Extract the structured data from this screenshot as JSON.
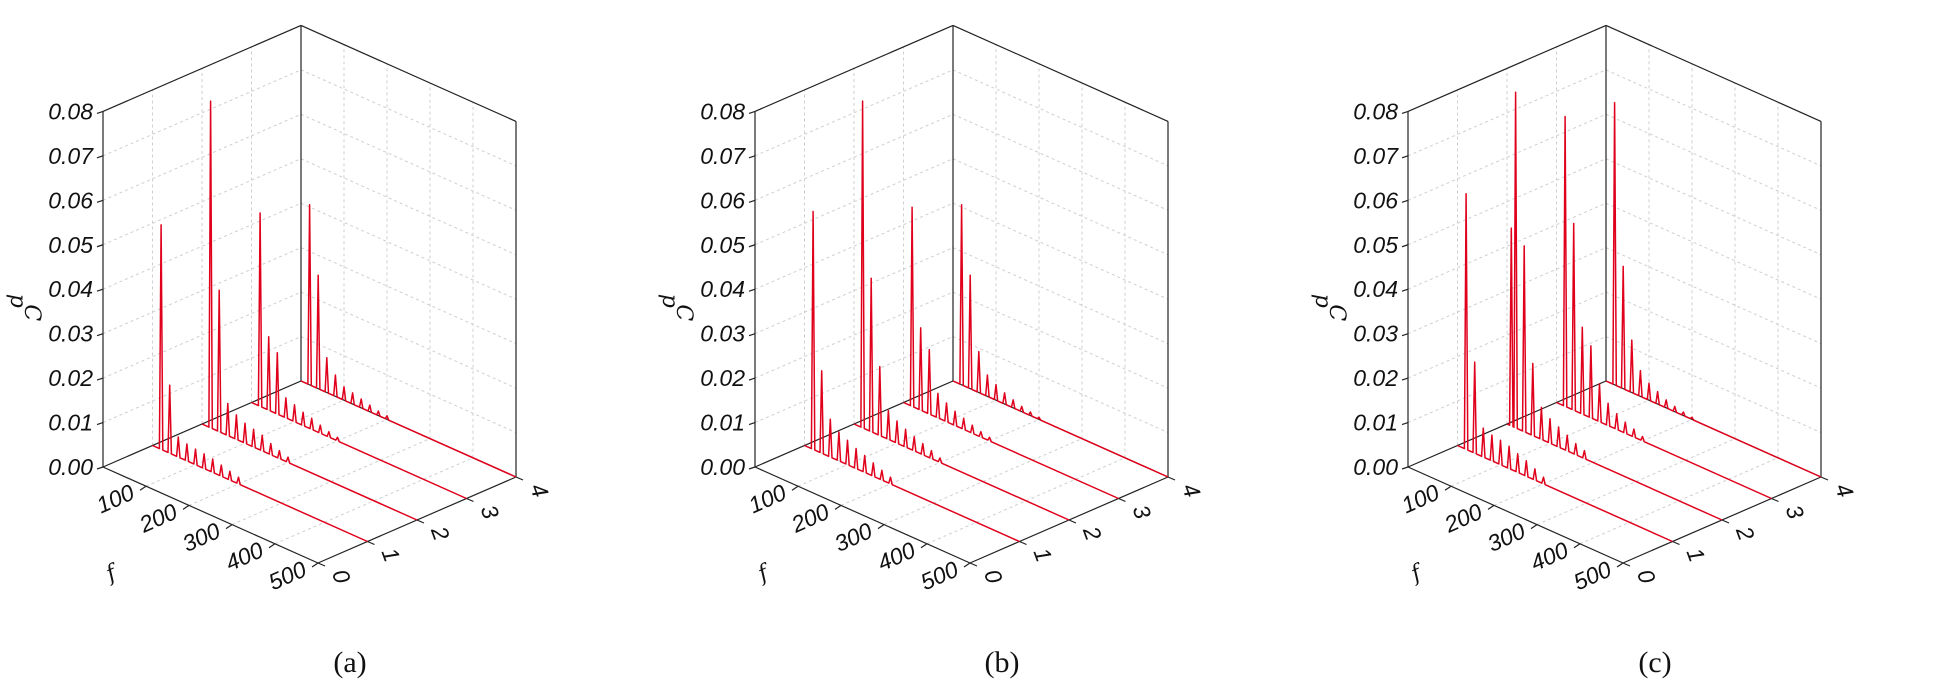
{
  "chart_data": [
    {
      "type": "line",
      "panel_label": "(a)",
      "zlabel": "C",
      "zlabel_sub": "p",
      "xlabel": "f",
      "ylabel": "",
      "xlim": [
        0,
        500
      ],
      "ylim": [
        0,
        4
      ],
      "zlim": [
        0,
        0.08
      ],
      "z_ticks": [
        "0.00",
        "0.01",
        "0.02",
        "0.03",
        "0.04",
        "0.05",
        "0.06",
        "0.07",
        "0.08"
      ],
      "x_ticks": [
        "100",
        "200",
        "300",
        "400",
        "500"
      ],
      "y_ticks": [
        "0",
        "1",
        "2",
        "3",
        "4"
      ],
      "grid": true,
      "series_color": "#e0001b",
      "series": [
        {
          "y": 1,
          "peaks": [
            {
              "f": 20,
              "c": 0.0505
            },
            {
              "f": 40,
              "c": 0.0153
            },
            {
              "f": 60,
              "c": 0.0045
            },
            {
              "f": 80,
              "c": 0.0038
            },
            {
              "f": 100,
              "c": 0.0035
            },
            {
              "f": 120,
              "c": 0.0033
            },
            {
              "f": 140,
              "c": 0.003
            },
            {
              "f": 160,
              "c": 0.0025
            },
            {
              "f": 180,
              "c": 0.002
            },
            {
              "f": 200,
              "c": 0.0015
            }
          ]
        },
        {
          "y": 2,
          "peaks": [
            {
              "f": 20,
              "c": 0.0735
            },
            {
              "f": 40,
              "c": 0.0318
            },
            {
              "f": 60,
              "c": 0.0072
            },
            {
              "f": 80,
              "c": 0.0055
            },
            {
              "f": 100,
              "c": 0.0045
            },
            {
              "f": 120,
              "c": 0.004
            },
            {
              "f": 140,
              "c": 0.0035
            },
            {
              "f": 160,
              "c": 0.0025
            },
            {
              "f": 180,
              "c": 0.0018
            },
            {
              "f": 200,
              "c": 0.0012
            }
          ]
        },
        {
          "y": 3,
          "peaks": [
            {
              "f": 20,
              "c": 0.0435
            },
            {
              "f": 40,
              "c": 0.0165
            },
            {
              "f": 60,
              "c": 0.0138
            },
            {
              "f": 80,
              "c": 0.0045
            },
            {
              "f": 100,
              "c": 0.0038
            },
            {
              "f": 120,
              "c": 0.003
            },
            {
              "f": 140,
              "c": 0.0025
            },
            {
              "f": 160,
              "c": 0.0018
            },
            {
              "f": 180,
              "c": 0.0012
            },
            {
              "f": 200,
              "c": 0.0008
            }
          ]
        },
        {
          "y": 4,
          "peaks": [
            {
              "f": 20,
              "c": 0.0405
            },
            {
              "f": 40,
              "c": 0.0255
            },
            {
              "f": 60,
              "c": 0.0078
            },
            {
              "f": 80,
              "c": 0.0048
            },
            {
              "f": 100,
              "c": 0.003
            },
            {
              "f": 120,
              "c": 0.0025
            },
            {
              "f": 140,
              "c": 0.002
            },
            {
              "f": 160,
              "c": 0.0015
            },
            {
              "f": 180,
              "c": 0.001
            },
            {
              "f": 200,
              "c": 0.0008
            }
          ]
        }
      ]
    },
    {
      "type": "line",
      "panel_label": "(b)",
      "zlabel": "C",
      "zlabel_sub": "p",
      "xlabel": "f",
      "ylabel": "",
      "xlim": [
        0,
        500
      ],
      "ylim": [
        0,
        4
      ],
      "zlim": [
        0,
        0.08
      ],
      "z_ticks": [
        "0.00",
        "0.01",
        "0.02",
        "0.03",
        "0.04",
        "0.05",
        "0.06",
        "0.07",
        "0.08"
      ],
      "x_ticks": [
        "100",
        "200",
        "300",
        "400",
        "500"
      ],
      "y_ticks": [
        "0",
        "1",
        "2",
        "3",
        "4"
      ],
      "grid": true,
      "series_color": "#e0001b",
      "series": [
        {
          "y": 1,
          "peaks": [
            {
              "f": 20,
              "c": 0.0535
            },
            {
              "f": 40,
              "c": 0.0185
            },
            {
              "f": 60,
              "c": 0.0085
            },
            {
              "f": 80,
              "c": 0.0065
            },
            {
              "f": 100,
              "c": 0.0055
            },
            {
              "f": 120,
              "c": 0.0045
            },
            {
              "f": 140,
              "c": 0.0038
            },
            {
              "f": 160,
              "c": 0.003
            },
            {
              "f": 180,
              "c": 0.0022
            },
            {
              "f": 200,
              "c": 0.0015
            }
          ]
        },
        {
          "y": 2,
          "peaks": [
            {
              "f": 20,
              "c": 0.0735
            },
            {
              "f": 40,
              "c": 0.0345
            },
            {
              "f": 60,
              "c": 0.0155
            },
            {
              "f": 80,
              "c": 0.0065
            },
            {
              "f": 100,
              "c": 0.005
            },
            {
              "f": 120,
              "c": 0.004
            },
            {
              "f": 140,
              "c": 0.0032
            },
            {
              "f": 160,
              "c": 0.0025
            },
            {
              "f": 180,
              "c": 0.0018
            },
            {
              "f": 200,
              "c": 0.001
            }
          ]
        },
        {
          "y": 3,
          "peaks": [
            {
              "f": 20,
              "c": 0.0448
            },
            {
              "f": 40,
              "c": 0.0185
            },
            {
              "f": 60,
              "c": 0.0145
            },
            {
              "f": 80,
              "c": 0.0055
            },
            {
              "f": 100,
              "c": 0.0042
            },
            {
              "f": 120,
              "c": 0.0032
            },
            {
              "f": 140,
              "c": 0.0025
            },
            {
              "f": 160,
              "c": 0.0018
            },
            {
              "f": 180,
              "c": 0.0012
            },
            {
              "f": 200,
              "c": 0.0008
            }
          ]
        },
        {
          "y": 4,
          "peaks": [
            {
              "f": 20,
              "c": 0.0405
            },
            {
              "f": 40,
              "c": 0.0255
            },
            {
              "f": 60,
              "c": 0.0092
            },
            {
              "f": 80,
              "c": 0.0048
            },
            {
              "f": 100,
              "c": 0.0035
            },
            {
              "f": 120,
              "c": 0.0025
            },
            {
              "f": 140,
              "c": 0.0018
            },
            {
              "f": 160,
              "c": 0.0012
            },
            {
              "f": 180,
              "c": 0.0008
            },
            {
              "f": 200,
              "c": 0.0005
            }
          ]
        }
      ]
    },
    {
      "type": "line",
      "panel_label": "(c)",
      "zlabel": "C",
      "zlabel_sub": "p",
      "xlabel": "f",
      "ylabel": "",
      "xlim": [
        0,
        500
      ],
      "ylim": [
        0,
        4
      ],
      "zlim": [
        0,
        0.08
      ],
      "z_ticks": [
        "0.00",
        "0.01",
        "0.02",
        "0.03",
        "0.04",
        "0.05",
        "0.06",
        "0.07",
        "0.08"
      ],
      "x_ticks": [
        "100",
        "200",
        "300",
        "400",
        "500"
      ],
      "y_ticks": [
        "0",
        "1",
        "2",
        "3",
        "4"
      ],
      "grid": true,
      "series_color": "#e0001b",
      "series": [
        {
          "y": 1,
          "peaks": [
            {
              "f": 20,
              "c": 0.0575
            },
            {
              "f": 40,
              "c": 0.0205
            },
            {
              "f": 60,
              "c": 0.0065
            },
            {
              "f": 80,
              "c": 0.0058
            },
            {
              "f": 100,
              "c": 0.0055
            },
            {
              "f": 120,
              "c": 0.005
            },
            {
              "f": 140,
              "c": 0.0042
            },
            {
              "f": 160,
              "c": 0.0035
            },
            {
              "f": 180,
              "c": 0.0025
            },
            {
              "f": 200,
              "c": 0.0015
            }
          ]
        },
        {
          "y": 2,
          "peaks": [
            {
              "f": 10,
              "c": 0.0445
            },
            {
              "f": 20,
              "c": 0.0755
            },
            {
              "f": 40,
              "c": 0.0418
            },
            {
              "f": 60,
              "c": 0.0162
            },
            {
              "f": 80,
              "c": 0.0072
            },
            {
              "f": 100,
              "c": 0.0055
            },
            {
              "f": 120,
              "c": 0.0045
            },
            {
              "f": 140,
              "c": 0.0035
            },
            {
              "f": 160,
              "c": 0.0025
            },
            {
              "f": 180,
              "c": 0.0018
            }
          ]
        },
        {
          "y": 3,
          "peaks": [
            {
              "f": 20,
              "c": 0.0652
            },
            {
              "f": 40,
              "c": 0.042
            },
            {
              "f": 60,
              "c": 0.0195
            },
            {
              "f": 80,
              "c": 0.0162
            },
            {
              "f": 100,
              "c": 0.0085
            },
            {
              "f": 120,
              "c": 0.005
            },
            {
              "f": 140,
              "c": 0.0035
            },
            {
              "f": 160,
              "c": 0.0025
            },
            {
              "f": 180,
              "c": 0.0018
            },
            {
              "f": 200,
              "c": 0.001
            }
          ]
        },
        {
          "y": 4,
          "peaks": [
            {
              "f": 20,
              "c": 0.0635
            },
            {
              "f": 40,
              "c": 0.0275
            },
            {
              "f": 60,
              "c": 0.0118
            },
            {
              "f": 80,
              "c": 0.0058
            },
            {
              "f": 100,
              "c": 0.0038
            },
            {
              "f": 120,
              "c": 0.0028
            },
            {
              "f": 140,
              "c": 0.0018
            },
            {
              "f": 160,
              "c": 0.0012
            },
            {
              "f": 180,
              "c": 0.0008
            },
            {
              "f": 200,
              "c": 0.0005
            }
          ]
        }
      ]
    }
  ]
}
